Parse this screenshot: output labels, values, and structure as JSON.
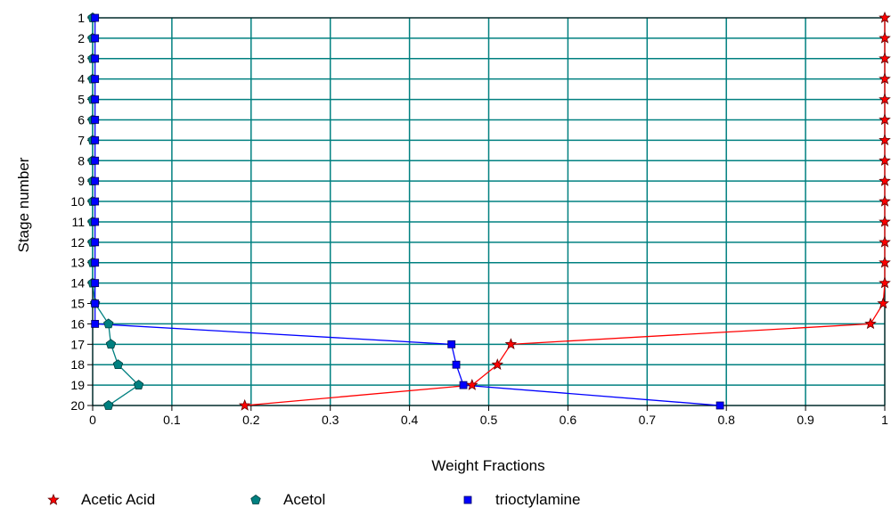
{
  "chart_data": {
    "type": "line",
    "title": "",
    "xlabel": "Weight Fractions",
    "ylabel": "Stage number",
    "xlim": [
      0,
      1
    ],
    "ylim": [
      1,
      20
    ],
    "y_inverted": true,
    "x_ticks": [
      "0",
      "0.1",
      "0.2",
      "0.3",
      "0.4",
      "0.5",
      "0.6",
      "0.7",
      "0.8",
      "0.9",
      "1"
    ],
    "y_ticks": [
      "1",
      "2",
      "3",
      "4",
      "5",
      "6",
      "7",
      "8",
      "9",
      "10",
      "11",
      "12",
      "13",
      "14",
      "15",
      "16",
      "17",
      "18",
      "19",
      "20"
    ],
    "grid": true,
    "legend_position": "bottom",
    "series": [
      {
        "name": "Acetic Acid",
        "color": "#ff0000",
        "marker": "star",
        "points": [
          {
            "x": 1.0,
            "y": 1
          },
          {
            "x": 1.0,
            "y": 2
          },
          {
            "x": 1.0,
            "y": 3
          },
          {
            "x": 1.0,
            "y": 4
          },
          {
            "x": 1.0,
            "y": 5
          },
          {
            "x": 1.0,
            "y": 6
          },
          {
            "x": 1.0,
            "y": 7
          },
          {
            "x": 1.0,
            "y": 8
          },
          {
            "x": 1.0,
            "y": 9
          },
          {
            "x": 1.0,
            "y": 10
          },
          {
            "x": 1.0,
            "y": 11
          },
          {
            "x": 1.0,
            "y": 12
          },
          {
            "x": 1.0,
            "y": 13
          },
          {
            "x": 1.0,
            "y": 14
          },
          {
            "x": 0.998,
            "y": 15
          },
          {
            "x": 0.982,
            "y": 16
          },
          {
            "x": 0.528,
            "y": 17
          },
          {
            "x": 0.511,
            "y": 18
          },
          {
            "x": 0.479,
            "y": 19
          },
          {
            "x": 0.192,
            "y": 20
          }
        ]
      },
      {
        "name": "Acetol",
        "color": "#008080",
        "marker": "pentagon",
        "points": [
          {
            "x": 0.0,
            "y": 1
          },
          {
            "x": 0.0,
            "y": 2
          },
          {
            "x": 0.0,
            "y": 3
          },
          {
            "x": 0.0,
            "y": 4
          },
          {
            "x": 0.0,
            "y": 5
          },
          {
            "x": 0.0,
            "y": 6
          },
          {
            "x": 0.0,
            "y": 7
          },
          {
            "x": 0.0,
            "y": 8
          },
          {
            "x": 0.0,
            "y": 9
          },
          {
            "x": 0.0,
            "y": 10
          },
          {
            "x": 0.0,
            "y": 11
          },
          {
            "x": 0.0,
            "y": 12
          },
          {
            "x": 0.0,
            "y": 13
          },
          {
            "x": 0.0,
            "y": 14
          },
          {
            "x": 0.003,
            "y": 15
          },
          {
            "x": 0.02,
            "y": 16
          },
          {
            "x": 0.023,
            "y": 17
          },
          {
            "x": 0.032,
            "y": 18
          },
          {
            "x": 0.058,
            "y": 19
          },
          {
            "x": 0.02,
            "y": 20
          }
        ]
      },
      {
        "name": "trioctylamine",
        "color": "#0000ff",
        "marker": "square",
        "points": [
          {
            "x": 0.003,
            "y": 1
          },
          {
            "x": 0.003,
            "y": 2
          },
          {
            "x": 0.003,
            "y": 3
          },
          {
            "x": 0.003,
            "y": 4
          },
          {
            "x": 0.003,
            "y": 5
          },
          {
            "x": 0.003,
            "y": 6
          },
          {
            "x": 0.003,
            "y": 7
          },
          {
            "x": 0.003,
            "y": 8
          },
          {
            "x": 0.003,
            "y": 9
          },
          {
            "x": 0.003,
            "y": 10
          },
          {
            "x": 0.003,
            "y": 11
          },
          {
            "x": 0.003,
            "y": 12
          },
          {
            "x": 0.003,
            "y": 13
          },
          {
            "x": 0.003,
            "y": 14
          },
          {
            "x": 0.003,
            "y": 15
          },
          {
            "x": 0.003,
            "y": 16
          },
          {
            "x": 0.453,
            "y": 17
          },
          {
            "x": 0.459,
            "y": 18
          },
          {
            "x": 0.468,
            "y": 19
          },
          {
            "x": 0.792,
            "y": 20
          }
        ]
      }
    ]
  }
}
